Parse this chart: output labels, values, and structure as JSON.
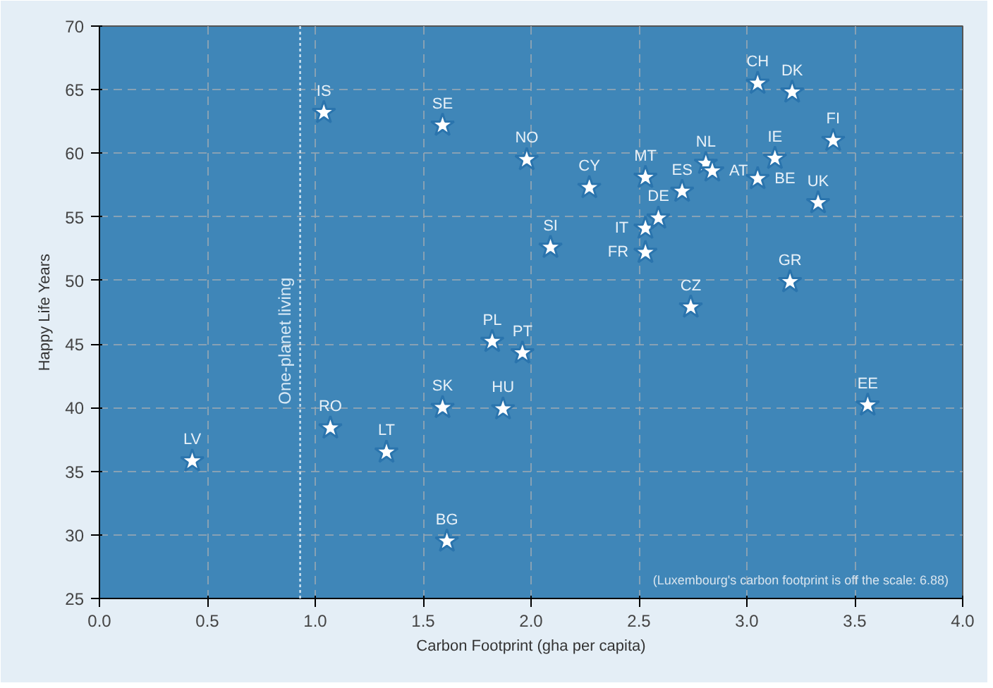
{
  "chart_data": {
    "type": "scatter",
    "xlabel": "Carbon Footprint (gha per capita)",
    "ylabel": "Happy Life Years",
    "x": [
      0.43,
      1.04,
      1.59,
      1.98,
      2.27,
      2.53,
      2.81,
      2.84,
      2.7,
      3.05,
      3.13,
      3.05,
      3.21,
      3.4,
      3.33,
      2.53,
      2.59,
      2.53,
      2.09,
      2.74,
      3.2,
      1.82,
      1.96,
      1.59,
      1.87,
      1.07,
      1.33,
      1.61,
      3.56
    ],
    "series": [
      {
        "color": "#ffffff",
        "values": [
          35.8,
          63.2,
          62.2,
          59.5,
          57.3,
          58.1,
          59.2,
          58.6,
          57.0,
          58.0,
          59.6,
          65.5,
          64.8,
          61.0,
          56.1,
          54.1,
          54.9,
          52.2,
          52.6,
          47.9,
          49.9,
          45.2,
          44.3,
          40.0,
          39.9,
          38.4,
          36.5,
          29.5,
          40.2
        ]
      }
    ],
    "marker": "star",
    "xlim": [
      0,
      4
    ],
    "ylim": [
      25,
      70
    ],
    "xticks": [
      {
        "value": 0,
        "label": "0.0"
      },
      0.5,
      {
        "value": 1,
        "label": "1.0"
      },
      1.5,
      {
        "value": 2,
        "label": "2.0"
      },
      2.5,
      {
        "value": 3,
        "label": "3.0"
      },
      3.5,
      {
        "value": 4,
        "label": "4.0"
      }
    ],
    "yticks": [
      25,
      30,
      35,
      40,
      45,
      50,
      55,
      60,
      65,
      70
    ],
    "grid": true,
    "ref_lines": [
      {
        "axis": "x",
        "value": 0.93,
        "label": "One-planet living",
        "color": "#d6e8f5",
        "line_style": "dotted"
      }
    ],
    "annotations": [
      {
        "text": "LV",
        "x": 0.43,
        "y": 35.8
      },
      {
        "text": "IS",
        "x": 1.04,
        "y": 63.2
      },
      {
        "text": "SE",
        "x": 1.59,
        "y": 62.2
      },
      {
        "text": "NO",
        "x": 1.98,
        "y": 59.5
      },
      {
        "text": "CY",
        "x": 2.27,
        "y": 57.3
      },
      {
        "text": "MT",
        "x": 2.53,
        "y": 58.1
      },
      {
        "text": "NL",
        "x": 2.81,
        "y": 59.2
      },
      {
        "text": "AT",
        "x": 2.84,
        "y": 58.6
      },
      {
        "text": "ES",
        "x": 2.7,
        "y": 57.0
      },
      {
        "text": "BE",
        "x": 3.05,
        "y": 58.0
      },
      {
        "text": "IE",
        "x": 3.13,
        "y": 59.6
      },
      {
        "text": "CH",
        "x": 3.05,
        "y": 65.5
      },
      {
        "text": "DK",
        "x": 3.21,
        "y": 64.8
      },
      {
        "text": "FI",
        "x": 3.4,
        "y": 61.0
      },
      {
        "text": "UK",
        "x": 3.33,
        "y": 56.1
      },
      {
        "text": "IT",
        "x": 2.53,
        "y": 54.1
      },
      {
        "text": "DE",
        "x": 2.59,
        "y": 54.9
      },
      {
        "text": "FR",
        "x": 2.53,
        "y": 52.2
      },
      {
        "text": "SI",
        "x": 2.09,
        "y": 52.6
      },
      {
        "text": "CZ",
        "x": 2.74,
        "y": 47.9
      },
      {
        "text": "GR",
        "x": 3.2,
        "y": 49.9
      },
      {
        "text": "PL",
        "x": 1.82,
        "y": 45.2
      },
      {
        "text": "PT",
        "x": 1.96,
        "y": 44.3
      },
      {
        "text": "SK",
        "x": 1.59,
        "y": 40.0
      },
      {
        "text": "HU",
        "x": 1.87,
        "y": 39.9
      },
      {
        "text": "RO",
        "x": 1.07,
        "y": 38.4
      },
      {
        "text": "LT",
        "x": 1.33,
        "y": 36.5
      },
      {
        "text": "BG",
        "x": 1.61,
        "y": 29.5
      },
      {
        "text": "EE",
        "x": 3.56,
        "y": 40.2
      },
      "(Luxembourg's carbon footprint is off the scale: 6.88)"
    ]
  }
}
